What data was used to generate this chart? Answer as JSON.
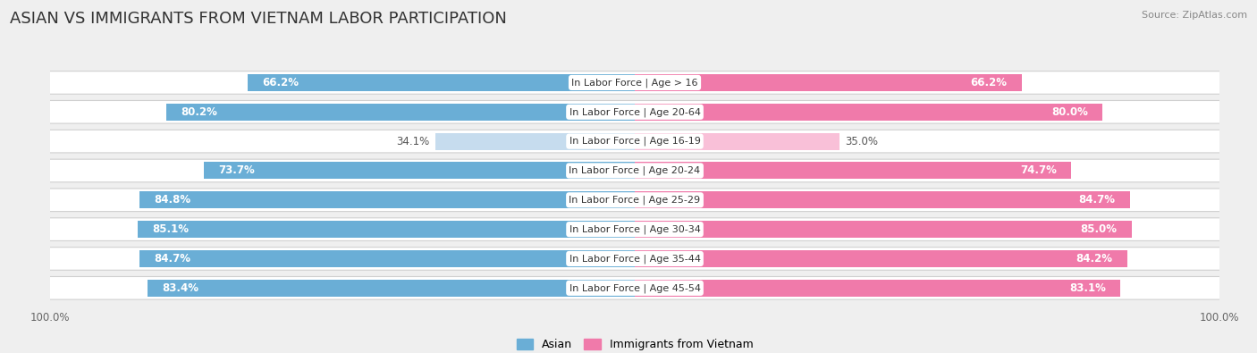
{
  "title": "ASIAN VS IMMIGRANTS FROM VIETNAM LABOR PARTICIPATION",
  "source": "Source: ZipAtlas.com",
  "categories": [
    "In Labor Force | Age > 16",
    "In Labor Force | Age 20-64",
    "In Labor Force | Age 16-19",
    "In Labor Force | Age 20-24",
    "In Labor Force | Age 25-29",
    "In Labor Force | Age 30-34",
    "In Labor Force | Age 35-44",
    "In Labor Force | Age 45-54"
  ],
  "asian_values": [
    66.2,
    80.2,
    34.1,
    73.7,
    84.8,
    85.1,
    84.7,
    83.4
  ],
  "vietnam_values": [
    66.2,
    80.0,
    35.0,
    74.7,
    84.7,
    85.0,
    84.2,
    83.1
  ],
  "asian_color": "#6aaed6",
  "vietnam_color": "#f07aaa",
  "asian_color_light": "#c6dcee",
  "vietnam_color_light": "#f9c0d8",
  "bg_color": "#efefef",
  "row_bg": "#ffffff",
  "row_edge": "#d0d0d0",
  "max_value": 100.0,
  "bar_height": 0.58,
  "title_fontsize": 13,
  "label_fontsize": 8.0,
  "value_fontsize": 8.5,
  "light_threshold": 50
}
